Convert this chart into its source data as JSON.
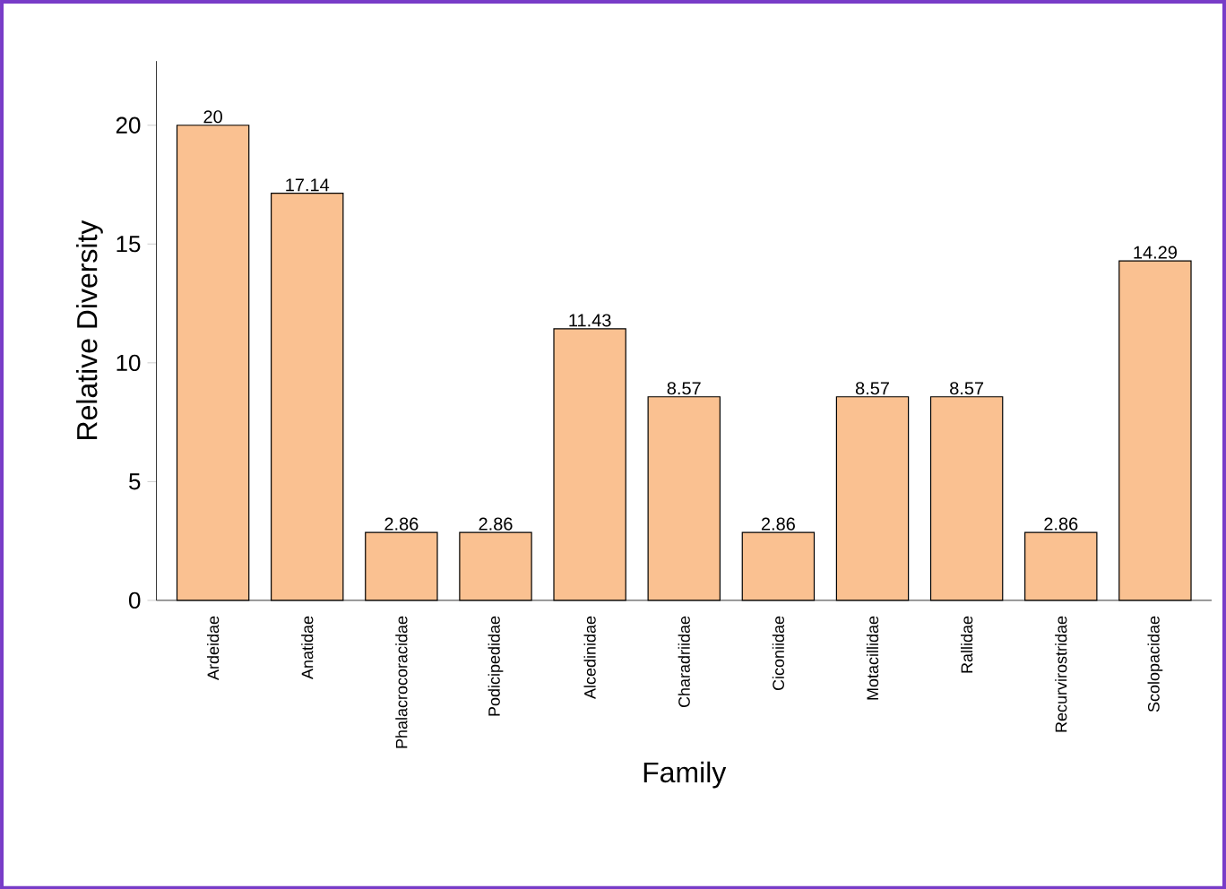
{
  "chart_data": {
    "type": "bar",
    "xlabel": "Family",
    "ylabel": "Relative Diversity",
    "categories": [
      "Ardeidae",
      "Anatidae",
      "Phalacrocoracidae",
      "Podicipedidae",
      "Alcedinidae",
      "Charadriidae",
      "Ciconiidae",
      "Motacillidae",
      "Rallidae",
      "Recurvirostridae",
      "Scolopacidae"
    ],
    "values": [
      20,
      17.14,
      2.86,
      2.86,
      11.43,
      8.57,
      2.86,
      8.57,
      8.57,
      2.86,
      14.29
    ],
    "color": "#fac191",
    "ylim": [
      0,
      22.7
    ],
    "yticks": [
      0,
      5,
      10,
      15,
      20
    ],
    "data_labels": true
  }
}
